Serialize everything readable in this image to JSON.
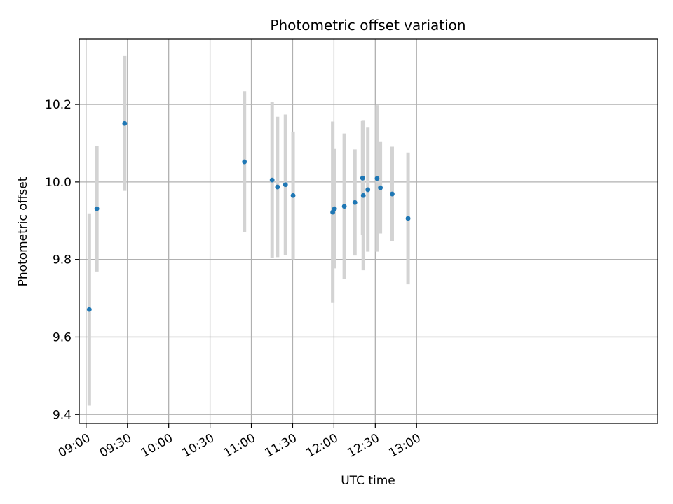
{
  "chart_data": {
    "type": "scatter",
    "title": "Photometric offset variation",
    "xlabel": "UTC time",
    "ylabel": "Photometric offset",
    "grid": true,
    "xlim_minutes": [
      -5.0,
      415.0
    ],
    "ylim": [
      9.377,
      10.368
    ],
    "x_ticks": [
      {
        "minutes": 0,
        "label": "09:00"
      },
      {
        "minutes": 30,
        "label": "09:30"
      },
      {
        "minutes": 60,
        "label": "10:00"
      },
      {
        "minutes": 90,
        "label": "10:30"
      },
      {
        "minutes": 120,
        "label": "11:00"
      },
      {
        "minutes": 150,
        "label": "11:30"
      },
      {
        "minutes": 180,
        "label": "12:00"
      },
      {
        "minutes": 210,
        "label": "12:30"
      },
      {
        "minutes": 240,
        "label": "13:00"
      }
    ],
    "y_ticks": [
      9.4,
      9.6,
      9.8,
      10.0,
      10.2
    ],
    "y_tick_labels": [
      "9.4",
      "9.6",
      "9.8",
      "10.0",
      "10.2"
    ],
    "marker_color": "#1f77b4",
    "errorbar_color": "#d3d3d3",
    "points": [
      {
        "time": "09:02",
        "minutes": 2.3,
        "y": 9.671,
        "err": 0.248
      },
      {
        "time": "09:08",
        "minutes": 7.8,
        "y": 9.931,
        "err": 0.162
      },
      {
        "time": "09:28",
        "minutes": 28.0,
        "y": 10.151,
        "err": 0.174
      },
      {
        "time": "10:55",
        "minutes": 115.0,
        "y": 10.052,
        "err": 0.182
      },
      {
        "time": "11:15",
        "minutes": 135.1,
        "y": 10.005,
        "err": 0.202
      },
      {
        "time": "11:19",
        "minutes": 139.0,
        "y": 9.987,
        "err": 0.181
      },
      {
        "time": "11:25",
        "minutes": 144.8,
        "y": 9.993,
        "err": 0.181
      },
      {
        "time": "11:30",
        "minutes": 150.3,
        "y": 9.965,
        "err": 0.165
      },
      {
        "time": "11:59",
        "minutes": 179.1,
        "y": 9.922,
        "err": 0.234
      },
      {
        "time": "12:00",
        "minutes": 180.4,
        "y": 9.931,
        "err": 0.154
      },
      {
        "time": "12:07",
        "minutes": 187.5,
        "y": 9.937,
        "err": 0.188
      },
      {
        "time": "12:15",
        "minutes": 195.2,
        "y": 9.947,
        "err": 0.137
      },
      {
        "time": "12:21",
        "minutes": 200.8,
        "y": 10.01,
        "err": 0.147
      },
      {
        "time": "12:21",
        "minutes": 201.3,
        "y": 9.965,
        "err": 0.193
      },
      {
        "time": "12:25",
        "minutes": 204.6,
        "y": 9.98,
        "err": 0.16
      },
      {
        "time": "12:31",
        "minutes": 211.3,
        "y": 10.009,
        "err": 0.189
      },
      {
        "time": "12:33",
        "minutes": 213.7,
        "y": 9.985,
        "err": 0.118
      },
      {
        "time": "12:42",
        "minutes": 222.3,
        "y": 9.969,
        "err": 0.122
      },
      {
        "time": "12:53",
        "minutes": 233.8,
        "y": 9.906,
        "err": 0.17
      }
    ]
  }
}
